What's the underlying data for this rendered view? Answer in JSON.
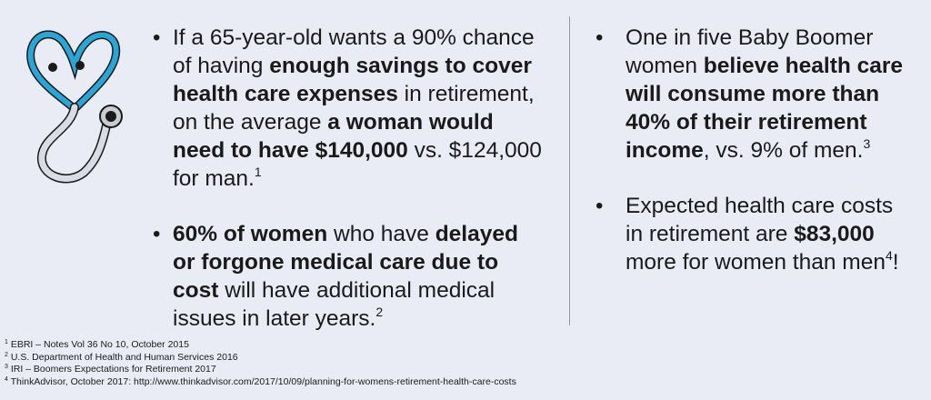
{
  "icon": {
    "name": "stethoscope-heart-icon",
    "color": "#2aa6d6"
  },
  "left_bullets": [
    {
      "parts": [
        {
          "t": "If a 65-year-old wants a 90% chance of having "
        },
        {
          "t": "enough savings to cover health care expenses",
          "b": true
        },
        {
          "t": " in retirement, on the average "
        },
        {
          "t": "a woman would need to have $140,000",
          "b": true
        },
        {
          "t": " vs. $124,000 for man."
        },
        {
          "t": "1",
          "sup": true
        }
      ]
    },
    {
      "parts": [
        {
          "t": "60% of women",
          "b": true
        },
        {
          "t": " who have "
        },
        {
          "t": "delayed or forgone medical care due to cost",
          "b": true
        },
        {
          "t": " will have additional medical issues in later years."
        },
        {
          "t": "2",
          "sup": true
        }
      ]
    }
  ],
  "right_bullets": [
    {
      "parts": [
        {
          "t": "One in five Baby Boomer women "
        },
        {
          "t": "believe health care will consume more than 40% of their retirement income",
          "b": true
        },
        {
          "t": ", vs. 9% of men."
        },
        {
          "t": "3",
          "sup": true
        }
      ]
    },
    {
      "parts": [
        {
          "t": "Expected health care costs in retirement are "
        },
        {
          "t": "$83,000",
          "b": true
        },
        {
          "t": " more for women than men"
        },
        {
          "t": "4",
          "sup": true
        },
        {
          "t": "!"
        }
      ]
    }
  ],
  "bullet_glyph": "•",
  "footnotes": [
    {
      "num": "1",
      "text": "EBRI – Notes Vol 36 No 10, October 2015"
    },
    {
      "num": "2",
      "text": "U.S. Department of Health and Human Services 2016"
    },
    {
      "num": "3",
      "text": "IRI – Boomers Expectations for Retirement 2017"
    },
    {
      "num": "4",
      "text": "ThinkAdvisor, October 2017: http://www.thinkadvisor.com/2017/10/09/planning-for-womens-retirement-health-care-costs"
    }
  ]
}
